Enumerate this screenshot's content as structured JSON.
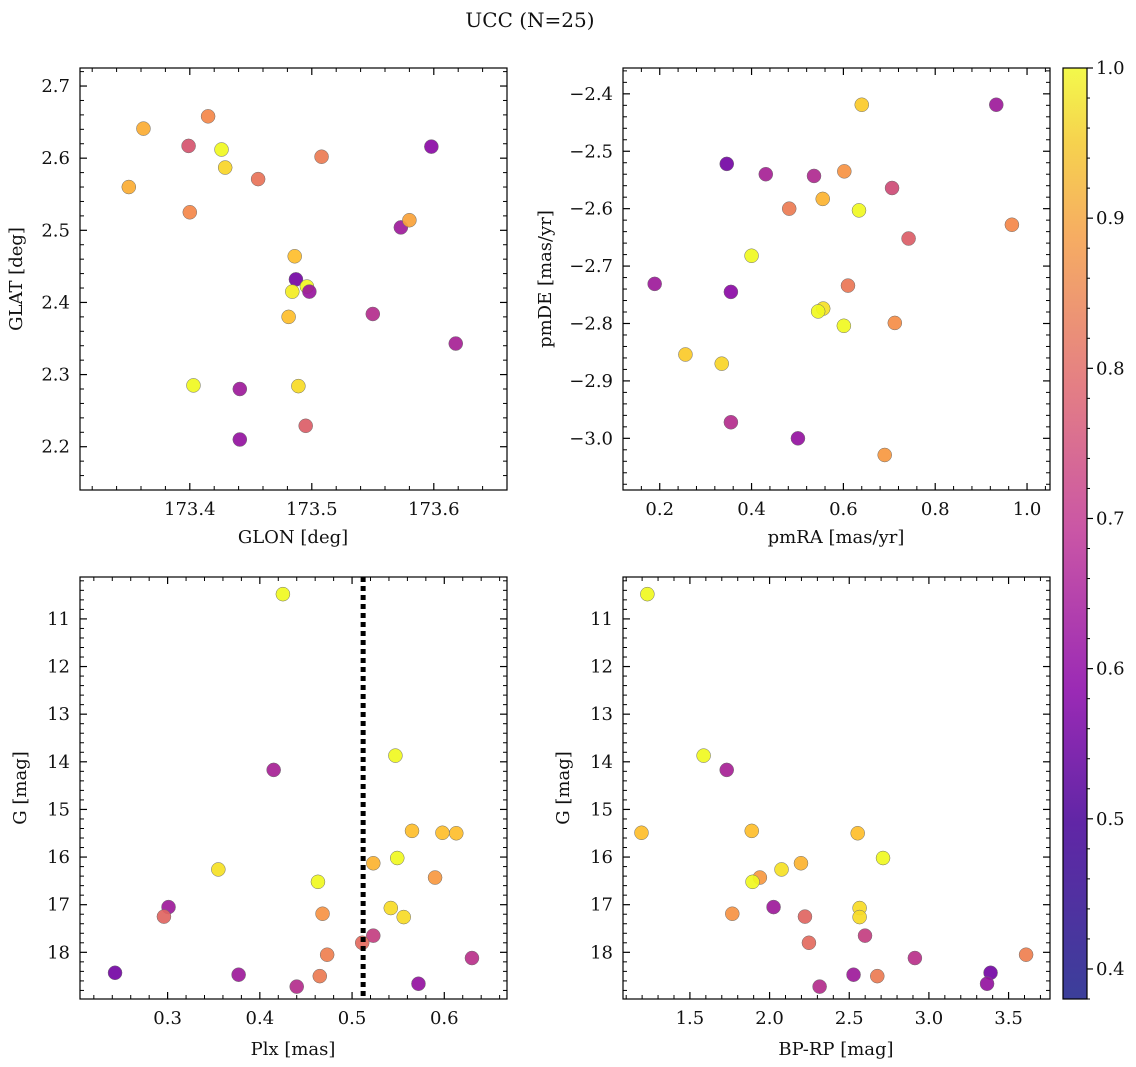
{
  "title": "UCC (N=25)",
  "colorbar": {
    "range": [
      0.38,
      1.0
    ],
    "ticks": [
      0.4,
      0.5,
      0.6,
      0.7,
      0.8,
      0.9,
      1.0
    ],
    "tick_labels": [
      "0.4",
      "0.5",
      "0.6",
      "0.7",
      "0.8",
      "0.9",
      "1.0"
    ],
    "colormap": "plasma"
  },
  "chart_data": [
    {
      "type": "scatter",
      "id": "glon-glat",
      "title": "",
      "xlabel": "GLON [deg]",
      "ylabel": "GLAT [deg]",
      "xlim": [
        173.31,
        173.66
      ],
      "ylim": [
        2.14,
        2.725
      ],
      "xticks": [
        173.4,
        173.5,
        173.6
      ],
      "xtick_labels": [
        "173.4",
        "173.5",
        "173.6"
      ],
      "yticks": [
        2.2,
        2.3,
        2.4,
        2.5,
        2.6,
        2.7
      ],
      "ytick_labels": [
        "2.2",
        "2.3",
        "2.4",
        "2.5",
        "2.6",
        "2.7"
      ],
      "inverted_y": false,
      "points": [
        {
          "x": 173.362,
          "y": 2.641,
          "c": 0.83
        },
        {
          "x": 173.415,
          "y": 2.658,
          "c": 0.76
        },
        {
          "x": 173.399,
          "y": 2.617,
          "c": 0.64
        },
        {
          "x": 173.426,
          "y": 2.612,
          "c": 0.98
        },
        {
          "x": 173.429,
          "y": 2.587,
          "c": 0.9
        },
        {
          "x": 173.35,
          "y": 2.56,
          "c": 0.83
        },
        {
          "x": 173.456,
          "y": 2.571,
          "c": 0.71
        },
        {
          "x": 173.508,
          "y": 2.602,
          "c": 0.73
        },
        {
          "x": 173.598,
          "y": 2.616,
          "c": 0.46
        },
        {
          "x": 173.4,
          "y": 2.525,
          "c": 0.76
        },
        {
          "x": 173.573,
          "y": 2.504,
          "c": 0.5
        },
        {
          "x": 173.58,
          "y": 2.514,
          "c": 0.81
        },
        {
          "x": 173.486,
          "y": 2.464,
          "c": 0.86
        },
        {
          "x": 173.487,
          "y": 2.432,
          "c": 0.42
        },
        {
          "x": 173.496,
          "y": 2.422,
          "c": 0.97
        },
        {
          "x": 173.484,
          "y": 2.415,
          "c": 0.94
        },
        {
          "x": 173.498,
          "y": 2.415,
          "c": 0.49
        },
        {
          "x": 173.481,
          "y": 2.38,
          "c": 0.86
        },
        {
          "x": 173.55,
          "y": 2.384,
          "c": 0.55
        },
        {
          "x": 173.618,
          "y": 2.343,
          "c": 0.52
        },
        {
          "x": 173.403,
          "y": 2.285,
          "c": 0.98
        },
        {
          "x": 173.441,
          "y": 2.28,
          "c": 0.5
        },
        {
          "x": 173.489,
          "y": 2.284,
          "c": 0.91
        },
        {
          "x": 173.495,
          "y": 2.229,
          "c": 0.66
        },
        {
          "x": 173.441,
          "y": 2.21,
          "c": 0.48
        }
      ]
    },
    {
      "type": "scatter",
      "id": "pmra-pmde",
      "title": "",
      "xlabel": "pmRA [mas/yr]",
      "ylabel": "pmDE [mas/yr]",
      "xlim": [
        0.12,
        1.05
      ],
      "ylim": [
        -3.09,
        -2.355
      ],
      "xticks": [
        0.2,
        0.4,
        0.6,
        0.8,
        1.0
      ],
      "xtick_labels": [
        "0.2",
        "0.4",
        "0.6",
        "0.8",
        "1.0"
      ],
      "yticks": [
        -3.0,
        -2.9,
        -2.8,
        -2.7,
        -2.6,
        -2.5,
        -2.4
      ],
      "ytick_labels": [
        "−3.0",
        "−2.9",
        "−2.8",
        "−2.7",
        "−2.6",
        "−2.5",
        "−2.4"
      ],
      "inverted_y": false,
      "points": [
        {
          "x": 0.64,
          "y": -2.419,
          "c": 0.88
        },
        {
          "x": 0.933,
          "y": -2.419,
          "c": 0.5
        },
        {
          "x": 0.346,
          "y": -2.522,
          "c": 0.42
        },
        {
          "x": 0.431,
          "y": -2.54,
          "c": 0.52
        },
        {
          "x": 0.536,
          "y": -2.543,
          "c": 0.54
        },
        {
          "x": 0.602,
          "y": -2.535,
          "c": 0.78
        },
        {
          "x": 0.706,
          "y": -2.564,
          "c": 0.62
        },
        {
          "x": 0.555,
          "y": -2.583,
          "c": 0.84
        },
        {
          "x": 0.482,
          "y": -2.6,
          "c": 0.73
        },
        {
          "x": 0.634,
          "y": -2.603,
          "c": 0.96
        },
        {
          "x": 0.742,
          "y": -2.652,
          "c": 0.66
        },
        {
          "x": 0.967,
          "y": -2.628,
          "c": 0.76
        },
        {
          "x": 0.4,
          "y": -2.682,
          "c": 0.98
        },
        {
          "x": 0.189,
          "y": -2.731,
          "c": 0.5
        },
        {
          "x": 0.355,
          "y": -2.745,
          "c": 0.46
        },
        {
          "x": 0.61,
          "y": -2.734,
          "c": 0.72
        },
        {
          "x": 0.556,
          "y": -2.774,
          "c": 0.92
        },
        {
          "x": 0.545,
          "y": -2.779,
          "c": 0.96
        },
        {
          "x": 0.601,
          "y": -2.804,
          "c": 0.97
        },
        {
          "x": 0.712,
          "y": -2.799,
          "c": 0.77
        },
        {
          "x": 0.256,
          "y": -2.854,
          "c": 0.88
        },
        {
          "x": 0.335,
          "y": -2.87,
          "c": 0.9
        },
        {
          "x": 0.355,
          "y": -2.972,
          "c": 0.55
        },
        {
          "x": 0.501,
          "y": -3.0,
          "c": 0.48
        },
        {
          "x": 0.69,
          "y": -3.029,
          "c": 0.79
        }
      ]
    },
    {
      "type": "scatter",
      "id": "plx-g",
      "title": "",
      "xlabel": "Plx [mas]",
      "ylabel": "G [mag]",
      "xlim": [
        0.205,
        0.668
      ],
      "ylim": [
        18.98,
        10.12
      ],
      "xticks": [
        0.3,
        0.4,
        0.5,
        0.6
      ],
      "xtick_labels": [
        "0.3",
        "0.4",
        "0.5",
        "0.6"
      ],
      "yticks": [
        11,
        12,
        13,
        14,
        15,
        16,
        17,
        18
      ],
      "ytick_labels": [
        "11",
        "12",
        "13",
        "14",
        "15",
        "16",
        "17",
        "18"
      ],
      "inverted_y": true,
      "vline": {
        "x": 0.512,
        "style": "dotted",
        "color": "#000000"
      },
      "points": [
        {
          "x": 0.425,
          "y": 10.48,
          "c": 0.98
        },
        {
          "x": 0.547,
          "y": 13.87,
          "c": 0.98
        },
        {
          "x": 0.415,
          "y": 14.17,
          "c": 0.52
        },
        {
          "x": 0.565,
          "y": 15.45,
          "c": 0.86
        },
        {
          "x": 0.598,
          "y": 15.49,
          "c": 0.86
        },
        {
          "x": 0.613,
          "y": 15.5,
          "c": 0.86
        },
        {
          "x": 0.549,
          "y": 16.02,
          "c": 0.97
        },
        {
          "x": 0.523,
          "y": 16.13,
          "c": 0.84
        },
        {
          "x": 0.355,
          "y": 16.26,
          "c": 0.92
        },
        {
          "x": 0.59,
          "y": 16.43,
          "c": 0.79
        },
        {
          "x": 0.463,
          "y": 16.52,
          "c": 0.97
        },
        {
          "x": 0.301,
          "y": 17.05,
          "c": 0.5
        },
        {
          "x": 0.542,
          "y": 17.07,
          "c": 0.91
        },
        {
          "x": 0.296,
          "y": 17.25,
          "c": 0.68
        },
        {
          "x": 0.468,
          "y": 17.19,
          "c": 0.78
        },
        {
          "x": 0.556,
          "y": 17.26,
          "c": 0.91
        },
        {
          "x": 0.523,
          "y": 17.65,
          "c": 0.59
        },
        {
          "x": 0.511,
          "y": 17.8,
          "c": 0.69
        },
        {
          "x": 0.473,
          "y": 18.05,
          "c": 0.74
        },
        {
          "x": 0.63,
          "y": 18.12,
          "c": 0.56
        },
        {
          "x": 0.243,
          "y": 18.43,
          "c": 0.42
        },
        {
          "x": 0.377,
          "y": 18.47,
          "c": 0.5
        },
        {
          "x": 0.465,
          "y": 18.5,
          "c": 0.73
        },
        {
          "x": 0.44,
          "y": 18.72,
          "c": 0.55
        },
        {
          "x": 0.572,
          "y": 18.66,
          "c": 0.48
        }
      ]
    },
    {
      "type": "scatter",
      "id": "bprp-g",
      "title": "",
      "xlabel": "BP-RP [mag]",
      "ylabel": "G [mag]",
      "xlim": [
        1.08,
        3.76
      ],
      "ylim": [
        18.98,
        10.12
      ],
      "xticks": [
        1.5,
        2.0,
        2.5,
        3.0,
        3.5
      ],
      "xtick_labels": [
        "1.5",
        "2.0",
        "2.5",
        "3.0",
        "3.5"
      ],
      "yticks": [
        11,
        12,
        13,
        14,
        15,
        16,
        17,
        18
      ],
      "ytick_labels": [
        "11",
        "12",
        "13",
        "14",
        "15",
        "16",
        "17",
        "18"
      ],
      "inverted_y": true,
      "points": [
        {
          "x": 1.233,
          "y": 10.48,
          "c": 0.98
        },
        {
          "x": 1.586,
          "y": 13.87,
          "c": 0.98
        },
        {
          "x": 1.731,
          "y": 14.17,
          "c": 0.52
        },
        {
          "x": 1.196,
          "y": 15.49,
          "c": 0.86
        },
        {
          "x": 1.888,
          "y": 15.45,
          "c": 0.86
        },
        {
          "x": 2.553,
          "y": 15.5,
          "c": 0.86
        },
        {
          "x": 2.712,
          "y": 16.02,
          "c": 0.97
        },
        {
          "x": 2.197,
          "y": 16.13,
          "c": 0.84
        },
        {
          "x": 2.075,
          "y": 16.26,
          "c": 0.92
        },
        {
          "x": 1.939,
          "y": 16.43,
          "c": 0.79
        },
        {
          "x": 1.893,
          "y": 16.52,
          "c": 0.97
        },
        {
          "x": 2.025,
          "y": 17.05,
          "c": 0.5
        },
        {
          "x": 2.565,
          "y": 17.07,
          "c": 0.91
        },
        {
          "x": 1.766,
          "y": 17.19,
          "c": 0.78
        },
        {
          "x": 2.222,
          "y": 17.25,
          "c": 0.68
        },
        {
          "x": 2.565,
          "y": 17.26,
          "c": 0.91
        },
        {
          "x": 2.599,
          "y": 17.65,
          "c": 0.59
        },
        {
          "x": 2.247,
          "y": 17.8,
          "c": 0.69
        },
        {
          "x": 3.61,
          "y": 18.05,
          "c": 0.74
        },
        {
          "x": 2.912,
          "y": 18.12,
          "c": 0.56
        },
        {
          "x": 3.387,
          "y": 18.43,
          "c": 0.42
        },
        {
          "x": 2.527,
          "y": 18.47,
          "c": 0.5
        },
        {
          "x": 2.676,
          "y": 18.5,
          "c": 0.73
        },
        {
          "x": 3.365,
          "y": 18.66,
          "c": 0.48
        },
        {
          "x": 2.314,
          "y": 18.72,
          "c": 0.55
        }
      ]
    }
  ]
}
